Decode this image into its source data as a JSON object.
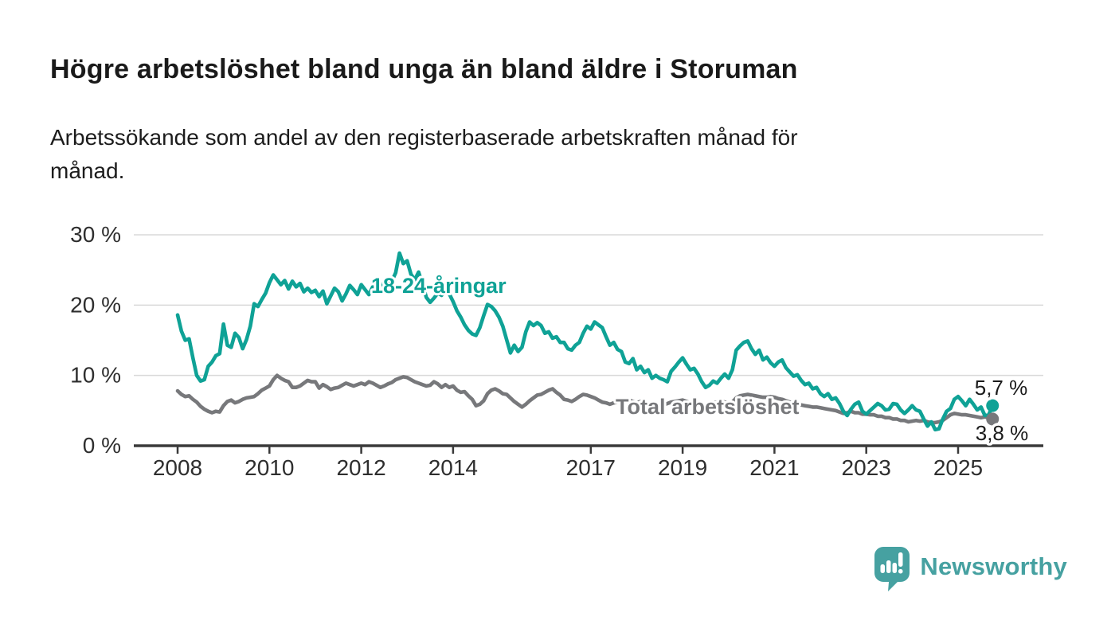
{
  "header": {
    "title": "Högre arbetslöshet bland unga än bland äldre i Storuman",
    "subtitle_line1": "Arbetssökande som andel av den registerbaserade arbetskraften månad för",
    "subtitle_line2": "månad."
  },
  "chart_data": {
    "type": "line",
    "title": "Högre arbetslöshet bland unga än bland äldre i Storuman",
    "subtitle": "Arbetssökande som andel av den registerbaserade arbetskraften månad för månad.",
    "x_unit": "month",
    "x_start": "2008-01",
    "x_end": "2025-10",
    "ylim": [
      0,
      30
    ],
    "grid": true,
    "legend": "inline-labels",
    "y_ticks": [
      0,
      10,
      20,
      30
    ],
    "y_tick_labels": [
      "0 %",
      "10 %",
      "20 %",
      "30 %"
    ],
    "x_tick_labels": [
      "2008",
      "2010",
      "2012",
      "2014",
      "2017",
      "2019",
      "2021",
      "2023",
      "2025"
    ],
    "series": [
      {
        "name": "Total arbetslöshet",
        "color": "#77787B",
        "end_label": "3,8 %",
        "end_value": 3.8,
        "values": [
          7.8,
          7.3,
          7.0,
          7.1,
          6.6,
          6.2,
          5.6,
          5.2,
          4.9,
          4.7,
          4.9,
          4.8,
          5.7,
          6.3,
          6.5,
          6.1,
          6.3,
          6.6,
          6.8,
          6.9,
          7.0,
          7.4,
          7.9,
          8.2,
          8.5,
          9.4,
          10.0,
          9.6,
          9.3,
          9.1,
          8.3,
          8.3,
          8.5,
          8.9,
          9.3,
          9.1,
          9.1,
          8.2,
          8.7,
          8.4,
          8.0,
          8.2,
          8.3,
          8.6,
          8.9,
          8.7,
          8.5,
          8.7,
          8.9,
          8.7,
          9.1,
          8.9,
          8.6,
          8.3,
          8.5,
          8.8,
          9.0,
          9.4,
          9.6,
          9.8,
          9.7,
          9.4,
          9.1,
          8.9,
          8.7,
          8.5,
          8.6,
          9.1,
          8.8,
          8.3,
          8.7,
          8.3,
          8.5,
          7.9,
          7.6,
          7.7,
          7.1,
          6.6,
          5.7,
          5.9,
          6.4,
          7.4,
          7.9,
          8.1,
          7.8,
          7.4,
          7.3,
          6.8,
          6.3,
          5.9,
          5.5,
          5.9,
          6.4,
          6.8,
          7.2,
          7.3,
          7.6,
          7.9,
          8.1,
          7.6,
          7.2,
          6.6,
          6.5,
          6.3,
          6.6,
          7.0,
          7.3,
          7.2,
          7.0,
          6.8,
          6.5,
          6.2,
          6.1,
          5.9,
          6.1,
          6.2,
          6.5,
          6.6,
          6.5,
          6.3,
          6.1,
          6.3,
          6.0,
          5.9,
          5.7,
          5.5,
          5.6,
          5.8,
          6.0,
          6.2,
          6.3,
          6.4,
          6.5,
          6.3,
          6.1,
          5.9,
          5.8,
          5.6,
          5.8,
          5.9,
          6.1,
          6.2,
          6.3,
          6.2,
          6.1,
          6.2,
          6.8,
          7.1,
          7.2,
          7.3,
          7.2,
          7.1,
          7.0,
          6.9,
          6.9,
          7.0,
          6.9,
          6.7,
          6.6,
          6.4,
          6.2,
          6.1,
          5.9,
          5.8,
          5.7,
          5.6,
          5.5,
          5.5,
          5.4,
          5.3,
          5.2,
          5.1,
          5.0,
          4.8,
          4.6,
          4.7,
          4.9,
          4.7,
          4.7,
          4.5,
          4.5,
          4.4,
          4.4,
          4.2,
          4.2,
          4.0,
          4.0,
          3.8,
          3.8,
          3.6,
          3.6,
          3.4,
          3.5,
          3.6,
          3.5,
          3.6,
          3.4,
          3.3,
          3.3,
          3.4,
          3.6,
          4.0,
          4.4,
          4.6,
          4.5,
          4.4,
          4.4,
          4.3,
          4.2,
          4.1,
          4.0,
          4.1,
          4.0,
          3.8
        ]
      },
      {
        "name": "18-24-åringar",
        "color": "#0FA296",
        "end_label": "5,7 %",
        "end_value": 5.7,
        "values": [
          18.6,
          16.3,
          15.0,
          15.2,
          12.5,
          10.0,
          9.2,
          9.4,
          11.3,
          11.9,
          12.8,
          13.1,
          17.3,
          14.3,
          14.0,
          16.0,
          15.4,
          13.8,
          15.1,
          17.0,
          20.2,
          19.8,
          20.8,
          21.7,
          23.2,
          24.3,
          23.6,
          22.9,
          23.5,
          22.3,
          23.4,
          22.6,
          23.1,
          21.9,
          22.4,
          21.8,
          22.1,
          21.2,
          22.0,
          20.2,
          21.3,
          22.4,
          21.9,
          20.6,
          21.6,
          22.8,
          22.2,
          21.5,
          22.9,
          22.2,
          21.5,
          22.6,
          21.8,
          22.5,
          23.3,
          22.7,
          23.4,
          24.6,
          27.4,
          25.9,
          26.3,
          24.4,
          23.6,
          24.7,
          23.0,
          21.1,
          20.4,
          21.0,
          21.7,
          21.4,
          22.1,
          21.6,
          20.5,
          19.2,
          18.3,
          17.2,
          16.4,
          15.9,
          15.7,
          16.8,
          18.5,
          20.1,
          19.8,
          19.2,
          18.3,
          17.0,
          15.1,
          13.2,
          14.3,
          13.4,
          14.0,
          16.2,
          17.6,
          17.1,
          17.5,
          17.1,
          16.0,
          16.2,
          15.3,
          15.5,
          14.7,
          14.7,
          13.8,
          13.6,
          14.3,
          14.7,
          16.0,
          17.0,
          16.6,
          17.6,
          17.2,
          16.8,
          15.5,
          14.3,
          14.7,
          13.7,
          13.4,
          11.9,
          11.7,
          12.4,
          10.8,
          11.3,
          10.4,
          10.8,
          9.6,
          10.0,
          9.6,
          9.4,
          9.1,
          10.6,
          11.2,
          11.9,
          12.5,
          11.6,
          10.8,
          11.0,
          10.2,
          9.1,
          8.3,
          8.6,
          9.2,
          8.9,
          9.6,
          10.2,
          9.6,
          10.8,
          13.6,
          14.2,
          14.7,
          14.9,
          13.8,
          13.0,
          13.6,
          12.2,
          12.6,
          11.8,
          11.3,
          11.9,
          12.2,
          11.1,
          10.5,
          9.9,
          10.1,
          9.3,
          8.7,
          8.9,
          8.1,
          8.3,
          7.4,
          7.0,
          7.4,
          6.6,
          6.8,
          6.0,
          4.9,
          4.3,
          5.2,
          5.9,
          6.2,
          4.9,
          4.5,
          5.0,
          5.5,
          6.0,
          5.7,
          5.1,
          5.2,
          6.0,
          5.9,
          5.1,
          4.6,
          5.1,
          5.7,
          5.1,
          4.9,
          3.8,
          2.8,
          3.4,
          2.3,
          2.4,
          3.8,
          4.9,
          5.3,
          6.6,
          7.0,
          6.4,
          5.7,
          6.6,
          5.9,
          5.1,
          5.5,
          4.3,
          4.4,
          5.7
        ]
      }
    ]
  },
  "branding": {
    "name": "Newsworthy",
    "color": "#46A1A1"
  }
}
